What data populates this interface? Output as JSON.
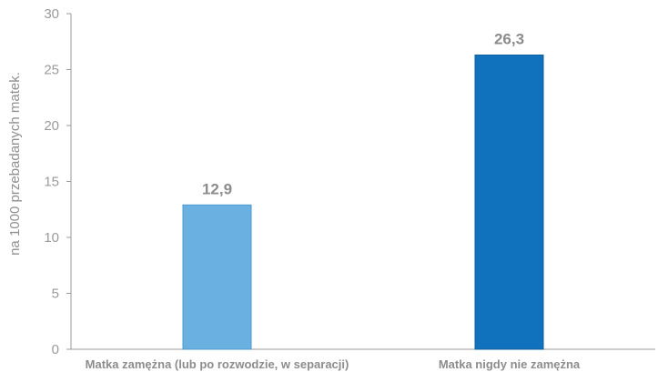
{
  "chart_data": {
    "type": "bar",
    "categories": [
      "Matka zamężna (lub po rozwodzie, w separacji)",
      "Matka nigdy nie zamężna"
    ],
    "values": [
      12.9,
      26.3
    ],
    "value_labels": [
      "12,9",
      "26,3"
    ],
    "colors": [
      "#6ab1e2",
      "#1072bd"
    ],
    "title": "",
    "xlabel": "",
    "ylabel": "na 1000 przebadanych matek.",
    "ylim": [
      0,
      30
    ],
    "yticks": [
      0,
      5,
      10,
      15,
      20,
      25,
      30
    ],
    "grid": false,
    "legend": "none"
  }
}
